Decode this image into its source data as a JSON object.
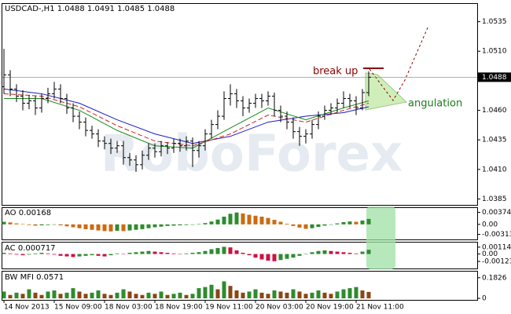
{
  "chart_data": [
    {
      "type": "ohlc",
      "title": "USDCAD-,H1 1.0488 1.0491 1.0485 1.0488",
      "watermark": "RoboForex",
      "color": "#000000",
      "categories": [
        "14 Nov 2013",
        null,
        null,
        null,
        null,
        null,
        null,
        null,
        "15 Nov 09:00",
        null,
        null,
        null,
        null,
        null,
        null,
        null,
        "18 Nov 03:00",
        null,
        null,
        null,
        null,
        null,
        null,
        null,
        "18 Nov 19:00",
        null,
        null,
        null,
        null,
        null,
        null,
        null,
        "19 Nov 11:00",
        null,
        null,
        null,
        null,
        null,
        null,
        null,
        "20 Nov 03:00",
        null,
        null,
        null,
        null,
        null,
        null,
        null,
        "20 Nov 19:00",
        null,
        null,
        null,
        null,
        null,
        null,
        null,
        "21 Nov 11:00",
        null,
        null
      ],
      "open": [
        1.048,
        1.049,
        1.0478,
        1.0472,
        1.0466,
        1.0468,
        1.0462,
        1.047,
        1.0474,
        1.0478,
        1.047,
        1.0462,
        1.0455,
        1.045,
        1.0443,
        1.044,
        1.0434,
        1.0432,
        1.0428,
        1.043,
        1.042,
        1.0418,
        1.0414,
        1.0422,
        1.0428,
        1.0425,
        1.043,
        1.0428,
        1.0432,
        1.043,
        1.0434,
        1.0426,
        1.043,
        1.044,
        1.0448,
        1.0455,
        1.047,
        1.0474,
        1.0468,
        1.0462,
        1.0466,
        1.047,
        1.0468,
        1.0472,
        1.046,
        1.0455,
        1.045,
        1.0442,
        1.0438,
        1.044,
        1.0448,
        1.0455,
        1.046,
        1.0462,
        1.0466,
        1.047,
        1.0468,
        1.0462,
        1.0475
      ],
      "high": [
        1.0512,
        1.0494,
        1.0482,
        1.0477,
        1.0473,
        1.0472,
        1.0474,
        1.0479,
        1.0484,
        1.0482,
        1.0474,
        1.0466,
        1.0459,
        1.0454,
        1.0447,
        1.0444,
        1.0438,
        1.0436,
        1.0434,
        1.0434,
        1.0424,
        1.0422,
        1.0426,
        1.0432,
        1.0432,
        1.0434,
        1.0433,
        1.0436,
        1.0436,
        1.0438,
        1.0437,
        1.0434,
        1.0444,
        1.0452,
        1.046,
        1.0476,
        1.0482,
        1.0478,
        1.0472,
        1.047,
        1.0474,
        1.0474,
        1.0476,
        1.0475,
        1.0464,
        1.0459,
        1.0454,
        1.0446,
        1.0444,
        1.0452,
        1.0459,
        1.0464,
        1.0466,
        1.047,
        1.0476,
        1.0474,
        1.0472,
        1.0478,
        1.0493
      ],
      "low": [
        1.0474,
        1.0472,
        1.0467,
        1.046,
        1.0461,
        1.0456,
        1.0458,
        1.0466,
        1.047,
        1.0466,
        1.0457,
        1.045,
        1.0444,
        1.0438,
        1.0436,
        1.0429,
        1.0427,
        1.0423,
        1.0424,
        1.0414,
        1.0413,
        1.0408,
        1.041,
        1.0418,
        1.042,
        1.0421,
        1.0423,
        1.0424,
        1.0425,
        1.0426,
        1.0412,
        1.042,
        1.0426,
        1.0436,
        1.0444,
        1.0452,
        1.0464,
        1.0462,
        1.0455,
        1.0458,
        1.0462,
        1.0462,
        1.0464,
        1.0455,
        1.045,
        1.0444,
        1.0436,
        1.043,
        1.0432,
        1.0436,
        1.0444,
        1.0452,
        1.0456,
        1.0458,
        1.0462,
        1.0462,
        1.0456,
        1.046,
        1.0472
      ],
      "close": [
        1.049,
        1.0478,
        1.0472,
        1.0466,
        1.0468,
        1.0462,
        1.047,
        1.0474,
        1.0478,
        1.047,
        1.0462,
        1.0455,
        1.045,
        1.0443,
        1.044,
        1.0434,
        1.0432,
        1.0428,
        1.043,
        1.042,
        1.0418,
        1.0414,
        1.0422,
        1.0428,
        1.0425,
        1.043,
        1.0428,
        1.0432,
        1.043,
        1.0434,
        1.0426,
        1.043,
        1.044,
        1.0448,
        1.0455,
        1.047,
        1.0474,
        1.0468,
        1.0462,
        1.0466,
        1.047,
        1.0468,
        1.0472,
        1.046,
        1.0455,
        1.045,
        1.0442,
        1.0438,
        1.044,
        1.0448,
        1.0455,
        1.046,
        1.0462,
        1.0466,
        1.047,
        1.0468,
        1.0462,
        1.0475,
        1.0488
      ],
      "moving_averages": [
        {
          "color": "#1c1cc8",
          "dashed": false,
          "x": [
            0,
            6,
            12,
            18,
            24,
            30,
            36,
            42,
            48,
            54,
            58
          ],
          "values": [
            1.0478,
            1.0474,
            1.0466,
            1.0452,
            1.044,
            1.0432,
            1.0438,
            1.045,
            1.0455,
            1.0458,
            1.0463
          ]
        },
        {
          "color": "#1a8a1a",
          "dashed": false,
          "x": [
            0,
            6,
            12,
            18,
            24,
            30,
            36,
            42,
            48,
            54,
            58
          ],
          "values": [
            1.047,
            1.047,
            1.046,
            1.0443,
            1.043,
            1.0428,
            1.0445,
            1.0462,
            1.0452,
            1.0462,
            1.0468
          ]
        },
        {
          "color": "#cc2222",
          "dashed": true,
          "x": [
            0,
            6,
            12,
            18,
            24,
            30,
            36,
            42,
            48,
            54,
            58
          ],
          "values": [
            1.0474,
            1.0472,
            1.0463,
            1.0447,
            1.0434,
            1.043,
            1.044,
            1.0456,
            1.045,
            1.046,
            1.0466
          ]
        }
      ],
      "price_line": 1.0488,
      "ylim": [
        1.038,
        1.055
      ],
      "yticks": [
        1.0535,
        {
          "value": 1.051,
          "label": "1.0510"
        },
        {
          "value": 1.046,
          "label": "1.0460"
        },
        1.0435,
        {
          "value": 1.041,
          "label": "1.0410"
        },
        1.0385
      ],
      "annotations": [
        {
          "text": "break up",
          "color": "#8b0000"
        },
        {
          "text": "angulation",
          "color": "#1a7a1a"
        }
      ]
    },
    {
      "type": "bar",
      "label": "AO 0.00168",
      "up_color": "#2e8b2e",
      "down_color": "#cc6a10",
      "values": [
        0.0008,
        0.0006,
        0.0003,
        0.0001,
        -0.0002,
        -0.0004,
        -0.0003,
        -0.0002,
        -0.0001,
        -0.0003,
        -0.0006,
        -0.0009,
        -0.0012,
        -0.0015,
        -0.0017,
        -0.0019,
        -0.0021,
        -0.0022,
        -0.002,
        -0.0021,
        -0.0019,
        -0.0017,
        -0.0015,
        -0.0012,
        -0.0009,
        -0.0007,
        -0.0005,
        -0.0004,
        -0.0003,
        -0.0002,
        -0.0001,
        0.0001,
        0.0004,
        0.0009,
        0.0015,
        0.0024,
        0.0033,
        0.0037,
        0.0034,
        0.003,
        0.0027,
        0.0024,
        0.002,
        0.0014,
        0.0008,
        0.0002,
        -0.0005,
        -0.001,
        -0.0014,
        -0.0012,
        -0.0008,
        -0.0004,
        0,
        0.0003,
        0.0007,
        0.0009,
        0.0008,
        0.0012,
        0.0017
      ],
      "ylim": [
        -0.0047,
        0.0051
      ],
      "yticks": [
        0.00374,
        {
          "value": 0,
          "label": "0.00"
        },
        -0.00313
      ]
    },
    {
      "type": "bar",
      "label": "AC 0.000717",
      "up_color": "#2e8b2e",
      "down_color": "#cc1144",
      "values": [
        0.0002,
        0.0001,
        -0.0001,
        -0.0002,
        -0.0001,
        0.0001,
        0.0002,
        0.0001,
        -0.0001,
        -0.0003,
        -0.0004,
        -0.0005,
        -0.0004,
        -0.0003,
        -0.0002,
        -0.0003,
        -0.0004,
        -0.0002,
        0.0001,
        0,
        0.0002,
        0.0003,
        0.0004,
        0.0005,
        0.0004,
        0.0003,
        0.0002,
        0.0001,
        0,
        0.0001,
        0.0002,
        0.0003,
        0.0005,
        0.0008,
        0.001,
        0.0012,
        0.0011,
        0.0006,
        0.0002,
        -0.0002,
        -0.0006,
        -0.0009,
        -0.0011,
        -0.0012,
        -0.001,
        -0.0008,
        -0.0006,
        -0.0003,
        0,
        0.0003,
        0.0005,
        0.0006,
        0.0005,
        0.0004,
        0.0003,
        0.0002,
        0.0001,
        0.0004,
        0.0007
      ],
      "ylim": [
        -0.0024,
        0.0019
      ],
      "yticks": [
        0.00114,
        {
          "value": 0,
          "label": "0.00"
        },
        -0.00123
      ]
    },
    {
      "type": "bar",
      "label": "BW MFI 0.0571",
      "up_color": "#2e8b2e",
      "down_color": "#8b4513",
      "values": [
        0.06,
        0.03,
        0.05,
        0.04,
        0.08,
        0.05,
        0.03,
        0.06,
        0.07,
        0.04,
        0.05,
        0.09,
        0.06,
        0.04,
        0.05,
        0.07,
        0.04,
        0.03,
        0.05,
        0.08,
        0.06,
        0.04,
        0.03,
        0.05,
        0.04,
        0.06,
        0.03,
        0.04,
        0.05,
        0.03,
        0.04,
        0.09,
        0.1,
        0.12,
        0.08,
        0.15,
        0.11,
        0.07,
        0.05,
        0.06,
        0.08,
        0.05,
        0.04,
        0.07,
        0.06,
        0.05,
        0.08,
        0.06,
        0.04,
        0.05,
        0.07,
        0.05,
        0.04,
        0.06,
        0.08,
        0.09,
        0.1,
        0.07,
        0.057
      ],
      "ylim": [
        -0.0135,
        0.2366
      ],
      "yticks": [
        0.1826,
        0
      ]
    }
  ]
}
